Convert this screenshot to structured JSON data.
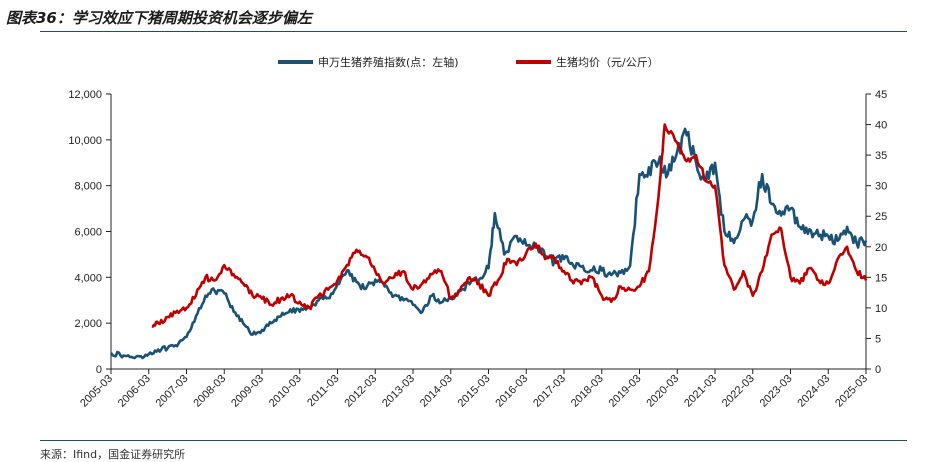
{
  "figure": {
    "title": "图表36：学习效应下猪周期投资机会逐步偏左",
    "source": "来源：Ifind，国金证券研究所"
  },
  "chart_data": {
    "type": "line",
    "x_tick_labels": [
      "2005-03",
      "2006-03",
      "2007-03",
      "2008-03",
      "2009-03",
      "2010-03",
      "2011-03",
      "2012-03",
      "2013-03",
      "2014-03",
      "2015-03",
      "2016-03",
      "2017-03",
      "2018-03",
      "2019-03",
      "2020-03",
      "2021-03",
      "2022-03",
      "2023-03",
      "2024-03",
      "2025-03"
    ],
    "y_left": {
      "lim": [
        0,
        12000
      ],
      "ticks": [
        "0",
        "2,000",
        "4,000",
        "6,000",
        "8,000",
        "10,000",
        "12,000"
      ]
    },
    "y_right": {
      "lim": [
        0,
        45
      ],
      "ticks": [
        "0",
        "5",
        "10",
        "15",
        "20",
        "25",
        "30",
        "35",
        "40",
        "45"
      ]
    },
    "legend_position": "top-center",
    "series": [
      {
        "name": "申万生猪养殖指数(点：左轴)",
        "axis": "left",
        "color": "#1a5276",
        "points": [
          [
            "2005-03",
            700
          ],
          [
            "2005-06",
            600
          ],
          [
            "2005-09",
            520
          ],
          [
            "2005-12",
            550
          ],
          [
            "2006-03",
            650
          ],
          [
            "2006-06",
            850
          ],
          [
            "2006-09",
            900
          ],
          [
            "2006-12",
            1000
          ],
          [
            "2007-03",
            1400
          ],
          [
            "2007-06",
            2300
          ],
          [
            "2007-09",
            3200
          ],
          [
            "2007-12",
            3400
          ],
          [
            "2008-03",
            3300
          ],
          [
            "2008-06",
            2500
          ],
          [
            "2008-09",
            2000
          ],
          [
            "2008-12",
            1500
          ],
          [
            "2009-03",
            1700
          ],
          [
            "2009-06",
            2000
          ],
          [
            "2009-09",
            2300
          ],
          [
            "2009-12",
            2600
          ],
          [
            "2010-03",
            2500
          ],
          [
            "2010-06",
            2700
          ],
          [
            "2010-09",
            3000
          ],
          [
            "2010-12",
            3100
          ],
          [
            "2011-03",
            3700
          ],
          [
            "2011-06",
            4300
          ],
          [
            "2011-09",
            3800
          ],
          [
            "2011-12",
            3500
          ],
          [
            "2012-03",
            3900
          ],
          [
            "2012-06",
            3600
          ],
          [
            "2012-09",
            3200
          ],
          [
            "2012-12",
            3000
          ],
          [
            "2013-03",
            2800
          ],
          [
            "2013-06",
            2500
          ],
          [
            "2013-09",
            3200
          ],
          [
            "2013-12",
            2900
          ],
          [
            "2014-03",
            3100
          ],
          [
            "2014-06",
            3400
          ],
          [
            "2014-09",
            3700
          ],
          [
            "2014-12",
            3900
          ],
          [
            "2015-03",
            4400
          ],
          [
            "2015-05",
            6800
          ],
          [
            "2015-08",
            5000
          ],
          [
            "2015-12",
            5800
          ],
          [
            "2016-03",
            5400
          ],
          [
            "2016-06",
            5300
          ],
          [
            "2016-09",
            4900
          ],
          [
            "2016-12",
            4700
          ],
          [
            "2017-03",
            4800
          ],
          [
            "2017-06",
            4500
          ],
          [
            "2017-09",
            4500
          ],
          [
            "2017-12",
            4300
          ],
          [
            "2018-03",
            4300
          ],
          [
            "2018-06",
            4100
          ],
          [
            "2018-09",
            4200
          ],
          [
            "2018-12",
            4500
          ],
          [
            "2019-03",
            8500
          ],
          [
            "2019-06",
            8800
          ],
          [
            "2019-09",
            9000
          ],
          [
            "2019-12",
            8500
          ],
          [
            "2020-03",
            9500
          ],
          [
            "2020-06",
            10200
          ],
          [
            "2020-09",
            9000
          ],
          [
            "2020-12",
            8200
          ],
          [
            "2021-03",
            9000
          ],
          [
            "2021-06",
            6000
          ],
          [
            "2021-09",
            5500
          ],
          [
            "2021-12",
            6500
          ],
          [
            "2022-03",
            6500
          ],
          [
            "2022-06",
            8500
          ],
          [
            "2022-09",
            7200
          ],
          [
            "2022-12",
            6700
          ],
          [
            "2023-03",
            7000
          ],
          [
            "2023-06",
            6200
          ],
          [
            "2023-09",
            6100
          ],
          [
            "2023-12",
            5800
          ],
          [
            "2024-03",
            5800
          ],
          [
            "2024-06",
            5600
          ],
          [
            "2024-09",
            6200
          ],
          [
            "2024-12",
            5500
          ],
          [
            "2025-03",
            5600
          ]
        ]
      },
      {
        "name": "生猪均价（元/公斤）",
        "axis": "right",
        "color": "#c00000",
        "points": [
          [
            "2006-04",
            7
          ],
          [
            "2006-06",
            7.5
          ],
          [
            "2006-09",
            8.5
          ],
          [
            "2006-12",
            9.5
          ],
          [
            "2007-03",
            10
          ],
          [
            "2007-06",
            12
          ],
          [
            "2007-09",
            15
          ],
          [
            "2007-12",
            14.5
          ],
          [
            "2008-03",
            17
          ],
          [
            "2008-06",
            15.5
          ],
          [
            "2008-09",
            14
          ],
          [
            "2008-12",
            12
          ],
          [
            "2009-03",
            11.5
          ],
          [
            "2009-06",
            10.5
          ],
          [
            "2009-09",
            11.5
          ],
          [
            "2009-12",
            12
          ],
          [
            "2010-03",
            11
          ],
          [
            "2010-06",
            10
          ],
          [
            "2010-09",
            12
          ],
          [
            "2010-12",
            13
          ],
          [
            "2011-03",
            14.5
          ],
          [
            "2011-06",
            17
          ],
          [
            "2011-09",
            19.5
          ],
          [
            "2011-12",
            18.5
          ],
          [
            "2012-03",
            16
          ],
          [
            "2012-06",
            14
          ],
          [
            "2012-09",
            15
          ],
          [
            "2012-12",
            16
          ],
          [
            "2013-03",
            13
          ],
          [
            "2013-06",
            14
          ],
          [
            "2013-09",
            15.5
          ],
          [
            "2013-12",
            16
          ],
          [
            "2014-03",
            11.5
          ],
          [
            "2014-06",
            13
          ],
          [
            "2014-09",
            15
          ],
          [
            "2014-12",
            14
          ],
          [
            "2015-03",
            12
          ],
          [
            "2015-06",
            14.5
          ],
          [
            "2015-09",
            18
          ],
          [
            "2015-12",
            17
          ],
          [
            "2016-03",
            19
          ],
          [
            "2016-06",
            20.5
          ],
          [
            "2016-09",
            18
          ],
          [
            "2016-12",
            18
          ],
          [
            "2017-03",
            16
          ],
          [
            "2017-06",
            14
          ],
          [
            "2017-09",
            14.5
          ],
          [
            "2017-12",
            15
          ],
          [
            "2018-03",
            12
          ],
          [
            "2018-06",
            11
          ],
          [
            "2018-09",
            13.5
          ],
          [
            "2018-12",
            13
          ],
          [
            "2019-03",
            13.5
          ],
          [
            "2019-06",
            16
          ],
          [
            "2019-09",
            28
          ],
          [
            "2019-11",
            40
          ],
          [
            "2020-03",
            37
          ],
          [
            "2020-06",
            34
          ],
          [
            "2020-09",
            35
          ],
          [
            "2020-12",
            31
          ],
          [
            "2021-03",
            30
          ],
          [
            "2021-06",
            17
          ],
          [
            "2021-09",
            13
          ],
          [
            "2021-12",
            16
          ],
          [
            "2022-03",
            12
          ],
          [
            "2022-06",
            16
          ],
          [
            "2022-09",
            22
          ],
          [
            "2022-12",
            23
          ],
          [
            "2023-03",
            15
          ],
          [
            "2023-06",
            14
          ],
          [
            "2023-09",
            16.5
          ],
          [
            "2023-12",
            14.5
          ],
          [
            "2024-03",
            14
          ],
          [
            "2024-06",
            18
          ],
          [
            "2024-09",
            20
          ],
          [
            "2024-12",
            16
          ],
          [
            "2025-03",
            14.5
          ]
        ]
      }
    ]
  }
}
